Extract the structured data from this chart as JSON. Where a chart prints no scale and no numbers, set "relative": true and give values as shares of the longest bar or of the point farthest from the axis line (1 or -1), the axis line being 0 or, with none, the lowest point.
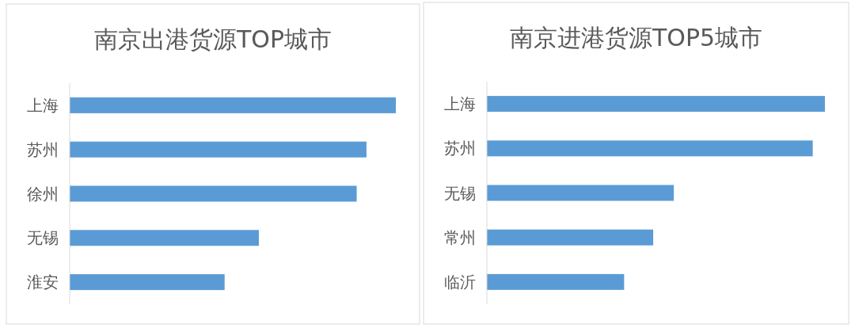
{
  "chart_data": [
    {
      "type": "bar",
      "orientation": "horizontal",
      "relative": true,
      "title": "南京出港货源TOP城市",
      "categories": [
        "上海",
        "苏州",
        "徐州",
        "无锡",
        "淮安"
      ],
      "values": [
        1,
        0.91,
        0.88,
        0.58,
        0.475
      ],
      "color": "#5b9bd5"
    },
    {
      "type": "bar",
      "orientation": "horizontal",
      "relative": true,
      "title": "南京进港货源TOP5城市",
      "categories": [
        "上海",
        "苏州",
        "无锡",
        "常州",
        "临沂"
      ],
      "values": [
        1,
        0.964,
        0.553,
        0.492,
        0.406
      ],
      "color": "#5b9bd5"
    }
  ]
}
